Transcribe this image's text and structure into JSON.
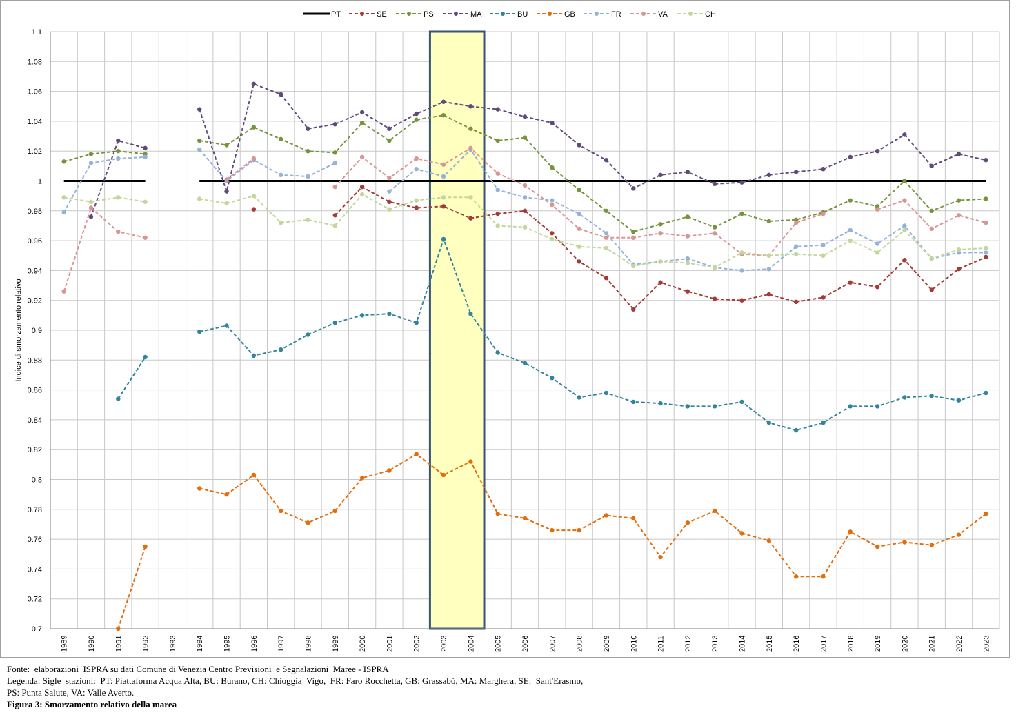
{
  "chart_data": {
    "type": "line",
    "title": "",
    "xlabel": "",
    "ylabel": "Indice di smorzamento relativo",
    "ylim": [
      0.7,
      1.1
    ],
    "yticks": [
      "0.7",
      "0.72",
      "0.74",
      "0.76",
      "0.78",
      "0.8",
      "0.82",
      "0.84",
      "0.86",
      "0.88",
      "0.9",
      "0.92",
      "0.94",
      "0.96",
      "0.98",
      "1",
      "1.02",
      "1.04",
      "1.06",
      "1.08",
      "1.1"
    ],
    "categories": [
      "1989",
      "1990",
      "1991",
      "1992",
      "1993",
      "1994",
      "1995",
      "1996",
      "1997",
      "1998",
      "1999",
      "2000",
      "2001",
      "2002",
      "2003",
      "2004",
      "2005",
      "2006",
      "2007",
      "2008",
      "2009",
      "2010",
      "2011",
      "2012",
      "2013",
      "2014",
      "2015",
      "2016",
      "2017",
      "2018",
      "2019",
      "2020",
      "2021",
      "2022",
      "2023"
    ],
    "grid": true,
    "legend_position": "top",
    "highlight": {
      "from": "2003",
      "to": "2004",
      "fill": "#FFFFC0",
      "border": "#3B5373"
    },
    "series": [
      {
        "name": "PT",
        "color": "#000000",
        "style": "solid",
        "markers": false,
        "values": [
          1,
          1,
          1,
          1,
          null,
          1,
          1,
          1,
          1,
          1,
          1,
          1,
          1,
          1,
          1,
          1,
          1,
          1,
          1,
          1,
          1,
          1,
          1,
          1,
          1,
          1,
          1,
          1,
          1,
          1,
          1,
          1,
          1,
          1,
          1
        ]
      },
      {
        "name": "SE",
        "color": "#A33B36",
        "style": "dashed",
        "markers": true,
        "values": [
          null,
          null,
          null,
          null,
          null,
          null,
          null,
          0.981,
          null,
          null,
          0.977,
          0.996,
          0.986,
          0.982,
          0.983,
          0.975,
          0.978,
          0.98,
          0.965,
          0.946,
          0.935,
          0.914,
          0.932,
          0.926,
          0.921,
          0.92,
          0.924,
          0.919,
          0.922,
          0.932,
          0.929,
          0.947,
          0.927,
          0.941,
          0.949
        ]
      },
      {
        "name": "PS",
        "color": "#77933C",
        "style": "dashed",
        "markers": true,
        "values": [
          1.013,
          1.018,
          1.02,
          1.018,
          null,
          1.027,
          1.024,
          1.036,
          1.028,
          1.02,
          1.019,
          1.039,
          1.027,
          1.041,
          1.044,
          1.035,
          1.027,
          1.029,
          1.009,
          0.994,
          0.98,
          0.966,
          0.971,
          0.976,
          0.969,
          0.978,
          0.973,
          0.974,
          0.979,
          0.987,
          0.983,
          1.0,
          0.98,
          0.987,
          0.988
        ]
      },
      {
        "name": "MA",
        "color": "#604A7B",
        "style": "dashed",
        "markers": true,
        "values": [
          null,
          0.976,
          1.027,
          1.022,
          null,
          1.048,
          0.993,
          1.065,
          1.058,
          1.035,
          1.038,
          1.046,
          1.035,
          1.045,
          1.053,
          1.05,
          1.048,
          1.043,
          1.039,
          1.024,
          1.014,
          0.995,
          1.004,
          1.006,
          0.998,
          0.999,
          1.004,
          1.006,
          1.008,
          1.016,
          1.02,
          1.031,
          1.01,
          1.018,
          1.014
        ]
      },
      {
        "name": "BU",
        "color": "#31849B",
        "style": "dashed",
        "markers": true,
        "values": [
          null,
          null,
          0.854,
          0.882,
          null,
          0.899,
          0.903,
          0.883,
          0.887,
          0.897,
          0.905,
          0.91,
          0.911,
          0.905,
          0.961,
          0.911,
          0.885,
          0.878,
          0.868,
          0.855,
          0.858,
          0.852,
          0.851,
          0.849,
          0.849,
          0.852,
          0.838,
          0.833,
          0.838,
          0.849,
          0.849,
          0.855,
          0.856,
          0.853,
          0.858
        ]
      },
      {
        "name": "GB",
        "color": "#E46C0A",
        "style": "dashed",
        "markers": true,
        "values": [
          null,
          null,
          0.7,
          0.755,
          null,
          0.794,
          0.79,
          0.803,
          0.779,
          0.771,
          0.779,
          0.801,
          0.806,
          0.817,
          0.803,
          0.812,
          0.777,
          0.774,
          0.766,
          0.766,
          0.776,
          0.774,
          0.748,
          0.771,
          0.779,
          0.764,
          0.759,
          0.735,
          0.735,
          0.765,
          0.755,
          0.758,
          0.756,
          0.763,
          0.777
        ]
      },
      {
        "name": "FR",
        "color": "#95B3D7",
        "style": "dashed",
        "markers": true,
        "values": [
          0.979,
          1.012,
          1.015,
          1.016,
          null,
          1.021,
          1.0,
          1.014,
          1.004,
          1.003,
          1.012,
          null,
          0.993,
          1.008,
          1.003,
          1.021,
          0.994,
          0.989,
          0.987,
          0.978,
          0.965,
          0.944,
          0.946,
          0.948,
          0.942,
          0.94,
          0.941,
          0.956,
          0.957,
          0.967,
          0.958,
          0.97,
          0.948,
          0.952,
          0.952
        ]
      },
      {
        "name": "VA",
        "color": "#D99594",
        "style": "dashed",
        "markers": true,
        "values": [
          0.926,
          0.982,
          0.966,
          0.962,
          null,
          null,
          1.001,
          1.015,
          null,
          null,
          0.996,
          1.016,
          1.002,
          1.015,
          1.011,
          1.022,
          1.005,
          0.997,
          0.984,
          0.968,
          0.962,
          0.962,
          0.965,
          0.963,
          0.965,
          0.951,
          0.95,
          0.972,
          0.978,
          null,
          0.981,
          0.987,
          0.968,
          0.977,
          0.972
        ]
      },
      {
        "name": "CH",
        "color": "#C3D69B",
        "style": "dashed",
        "markers": true,
        "values": [
          0.989,
          0.986,
          0.989,
          0.986,
          null,
          0.988,
          0.985,
          0.99,
          0.972,
          0.974,
          0.97,
          0.991,
          0.981,
          0.987,
          0.989,
          0.989,
          0.97,
          0.969,
          0.961,
          0.956,
          0.955,
          0.943,
          0.946,
          0.945,
          0.942,
          0.952,
          0.95,
          0.951,
          0.95,
          0.96,
          0.952,
          0.967,
          0.948,
          0.954,
          0.955
        ]
      }
    ]
  },
  "notes": {
    "source": "Fonte:  elaborazioni  ISPRA su dati Comune di Venezia Centro Previsioni  e Segnalazioni  Maree - ISPRA",
    "legend_line1": "Legenda: Sigle  stazioni:  PT: Piattaforma Acqua Alta, BU: Burano, CH: Chioggia  Vigo,  FR: Faro Rocchetta, GB: Grassabò, MA: Marghera, SE:  Sant'Erasmo,",
    "legend_line2": "PS: Punta Salute, VA: Valle Averto.",
    "figure": "Figura 3: Smorzamento relativo della marea"
  }
}
